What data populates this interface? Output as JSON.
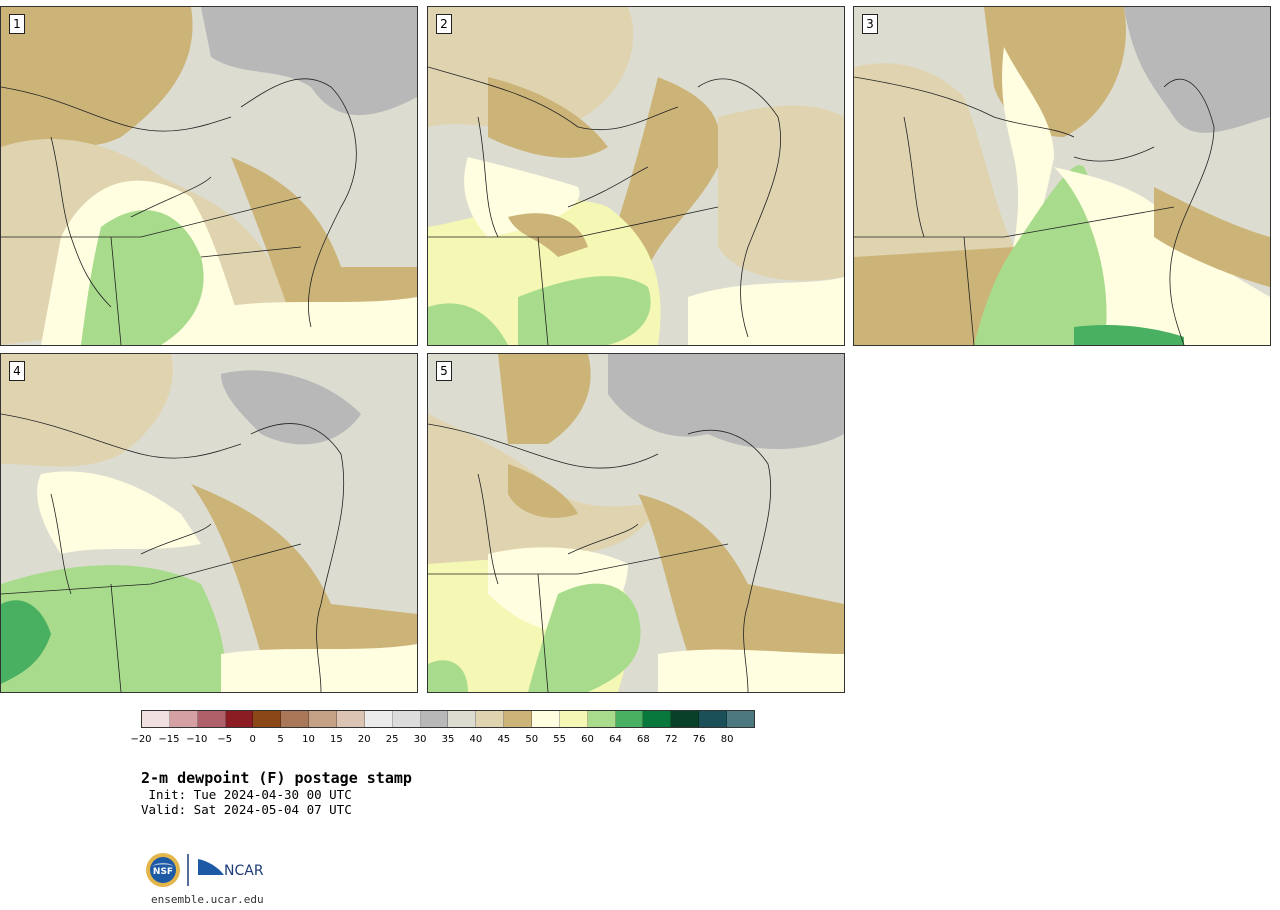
{
  "panels": [
    {
      "label": "1"
    },
    {
      "label": "2"
    },
    {
      "label": "3"
    },
    {
      "label": "4"
    },
    {
      "label": "5"
    }
  ],
  "colorbar": {
    "colors": [
      "#f0e0e0",
      "#d4a0a4",
      "#b06068",
      "#8c1c24",
      "#8a4818",
      "#a87858",
      "#c4a084",
      "#dcc4b4",
      "#ececec",
      "#dcdcdc",
      "#b8b8b8",
      "#dcdcd0",
      "#e0d4b0",
      "#ccb478",
      "#fffee0",
      "#f4f8b4",
      "#a8dc8c",
      "#48b060",
      "#08783c",
      "#084028",
      "#1c5058",
      "#4c7880"
    ],
    "ticks": [
      "−20",
      "−15",
      "−10",
      "−5",
      "0",
      "5",
      "10",
      "15",
      "20",
      "25",
      "30",
      "35",
      "40",
      "45",
      "50",
      "55",
      "60",
      "64",
      "68",
      "72",
      "76",
      "80"
    ]
  },
  "title": "2-m dewpoint (F) postage stamp",
  "init": " Init: Tue 2024-04-30 00 UTC",
  "valid": "Valid: Sat 2024-05-04 07 UTC",
  "logos": {
    "nsf": "NSF",
    "ncar": "NCAR"
  },
  "url": "ensemble.ucar.edu"
}
